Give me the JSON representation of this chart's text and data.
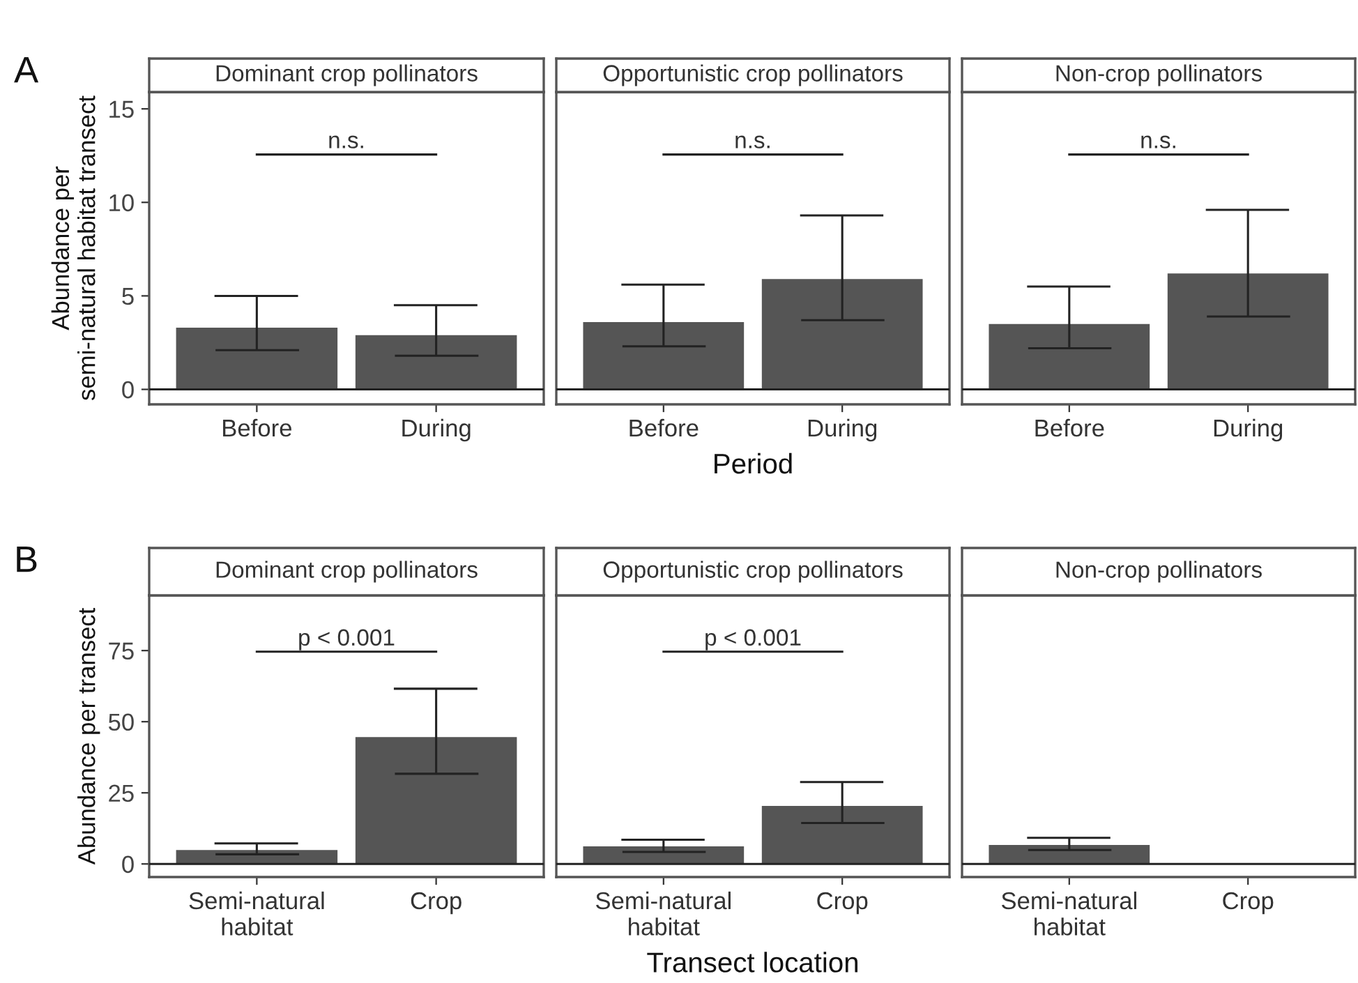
{
  "chart_data": [
    {
      "type": "bar",
      "title": "Dominant crop pollinators",
      "categories": [
        "Before",
        "During"
      ],
      "values": [
        3.3,
        2.9
      ],
      "errors": [
        [
          2.1,
          5.0
        ],
        [
          1.8,
          4.5
        ]
      ],
      "color": "#555555",
      "ylabel": "Abundance per\nsemi-natural habitat transect",
      "ylim": [
        -0.8,
        15.9
      ],
      "yticks": [
        0,
        5,
        10,
        15
      ],
      "ref_lines": [
        {
          "axis": "y",
          "value": 0
        }
      ],
      "annotations": [
        "A",
        "n.s."
      ],
      "grid": false
    },
    {
      "type": "bar",
      "title": "Opportunistic crop pollinators",
      "categories": [
        "Before",
        "During"
      ],
      "values": [
        3.6,
        5.9
      ],
      "errors": [
        [
          2.3,
          5.6
        ],
        [
          3.7,
          9.3
        ]
      ],
      "color": "#555555",
      "xlabel": "Period",
      "ylim": [
        -0.8,
        15.9
      ],
      "yticks": [
        0,
        5,
        10,
        15
      ],
      "tick_labels": "x",
      "ref_lines": [
        {
          "axis": "y",
          "value": 0
        }
      ],
      "annotations": [
        "n.s."
      ],
      "grid": false
    },
    {
      "type": "bar",
      "title": "Non-crop pollinators",
      "categories": [
        "Before",
        "During"
      ],
      "values": [
        3.5,
        6.2
      ],
      "errors": [
        [
          2.2,
          5.5
        ],
        [
          3.9,
          9.6
        ]
      ],
      "color": "#555555",
      "ylim": [
        -0.8,
        15.9
      ],
      "yticks": [
        0,
        5,
        10,
        15
      ],
      "tick_labels": "x",
      "ref_lines": [
        {
          "axis": "y",
          "value": 0
        }
      ],
      "annotations": [
        "n.s."
      ],
      "grid": false
    },
    {
      "type": "bar",
      "title": "Dominant crop pollinators",
      "categories": [
        "Semi-natural\nhabitat",
        "Crop"
      ],
      "values": [
        4.9,
        44.6
      ],
      "errors": [
        [
          3.4,
          7.2
        ],
        [
          31.7,
          61.6
        ]
      ],
      "color": "#555555",
      "ylabel": "Abundance per transect",
      "ylim": [
        -4.6,
        94.4
      ],
      "yticks": [
        0,
        25,
        50,
        75
      ],
      "ref_lines": [
        {
          "axis": "y",
          "value": 0
        }
      ],
      "annotations": [
        "B",
        "p < 0.001"
      ],
      "grid": false
    },
    {
      "type": "bar",
      "title": "Opportunistic crop pollinators",
      "categories": [
        "Semi-natural\nhabitat",
        "Crop"
      ],
      "values": [
        6.2,
        20.4
      ],
      "errors": [
        [
          4.2,
          8.5
        ],
        [
          14.4,
          28.8
        ]
      ],
      "color": "#555555",
      "xlabel": "Transect location",
      "ylim": [
        -4.6,
        94.4
      ],
      "yticks": [
        0,
        25,
        50,
        75
      ],
      "tick_labels": "x",
      "ref_lines": [
        {
          "axis": "y",
          "value": 0
        }
      ],
      "annotations": [
        "p < 0.001"
      ],
      "grid": false
    },
    {
      "type": "bar",
      "title": "Non-crop pollinators",
      "categories": [
        "Semi-natural\nhabitat",
        "Crop"
      ],
      "values": [
        6.7,
        null
      ],
      "errors": [
        [
          4.9,
          9.2
        ],
        null
      ],
      "color": "#555555",
      "ylim": [
        -4.6,
        94.4
      ],
      "yticks": [
        0,
        25,
        50,
        75
      ],
      "tick_labels": "x",
      "ref_lines": [
        {
          "axis": "y",
          "value": 0
        }
      ],
      "grid": false
    }
  ]
}
